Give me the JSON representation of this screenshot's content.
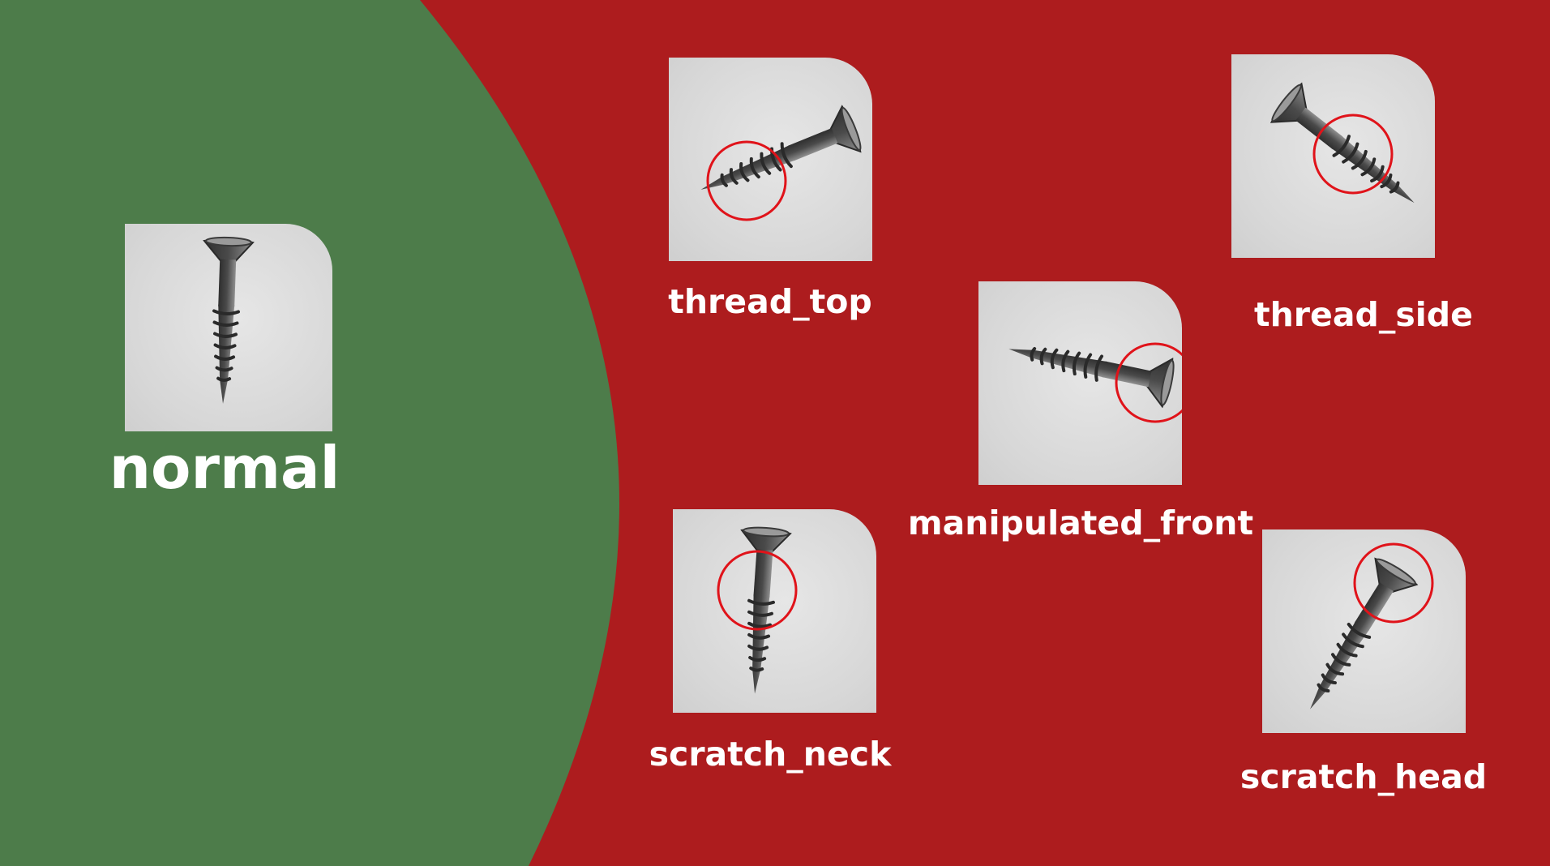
{
  "colors": {
    "normal_region": "#4d7c4a",
    "defect_region": "#ad1c1e",
    "marker_circle": "#e0131a",
    "label_text": "#ffffff"
  },
  "normal": {
    "label": "normal"
  },
  "defects": [
    {
      "label": "thread_top"
    },
    {
      "label": "thread_side"
    },
    {
      "label": "manipulated_front"
    },
    {
      "label": "scratch_neck"
    },
    {
      "label": "scratch_head"
    }
  ]
}
